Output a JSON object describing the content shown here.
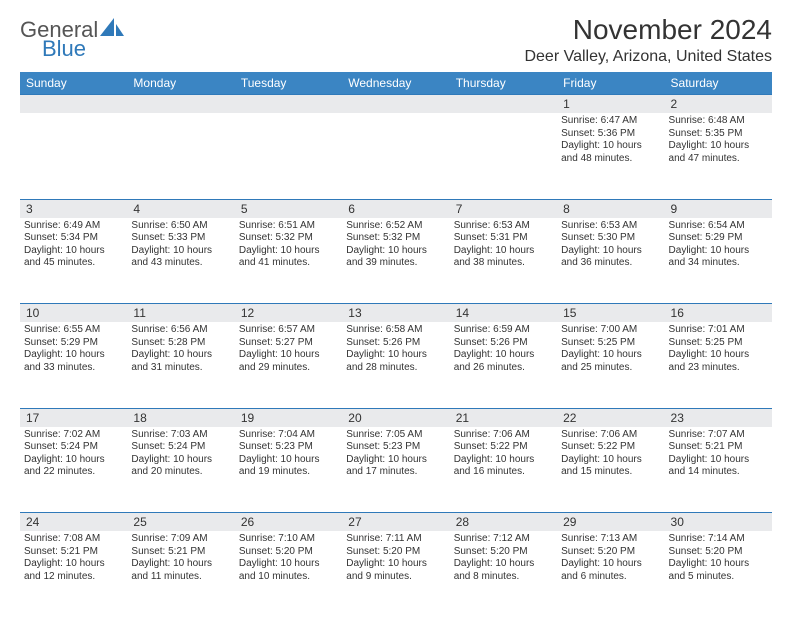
{
  "logo": {
    "part1": "General",
    "part2": "Blue"
  },
  "title": "November 2024",
  "location": "Deer Valley, Arizona, United States",
  "colors": {
    "header_bg": "#3b85c3",
    "header_text": "#ffffff",
    "daynum_bg": "#e9eaec",
    "border": "#2f79b9",
    "text": "#333333",
    "logo_gray": "#555555",
    "logo_blue": "#2f79b9"
  },
  "day_headers": [
    "Sunday",
    "Monday",
    "Tuesday",
    "Wednesday",
    "Thursday",
    "Friday",
    "Saturday"
  ],
  "weeks": [
    {
      "nums": [
        "",
        "",
        "",
        "",
        "",
        "1",
        "2"
      ],
      "cells": [
        null,
        null,
        null,
        null,
        null,
        {
          "sunrise": "Sunrise: 6:47 AM",
          "sunset": "Sunset: 5:36 PM",
          "day1": "Daylight: 10 hours",
          "day2": "and 48 minutes."
        },
        {
          "sunrise": "Sunrise: 6:48 AM",
          "sunset": "Sunset: 5:35 PM",
          "day1": "Daylight: 10 hours",
          "day2": "and 47 minutes."
        }
      ]
    },
    {
      "nums": [
        "3",
        "4",
        "5",
        "6",
        "7",
        "8",
        "9"
      ],
      "cells": [
        {
          "sunrise": "Sunrise: 6:49 AM",
          "sunset": "Sunset: 5:34 PM",
          "day1": "Daylight: 10 hours",
          "day2": "and 45 minutes."
        },
        {
          "sunrise": "Sunrise: 6:50 AM",
          "sunset": "Sunset: 5:33 PM",
          "day1": "Daylight: 10 hours",
          "day2": "and 43 minutes."
        },
        {
          "sunrise": "Sunrise: 6:51 AM",
          "sunset": "Sunset: 5:32 PM",
          "day1": "Daylight: 10 hours",
          "day2": "and 41 minutes."
        },
        {
          "sunrise": "Sunrise: 6:52 AM",
          "sunset": "Sunset: 5:32 PM",
          "day1": "Daylight: 10 hours",
          "day2": "and 39 minutes."
        },
        {
          "sunrise": "Sunrise: 6:53 AM",
          "sunset": "Sunset: 5:31 PM",
          "day1": "Daylight: 10 hours",
          "day2": "and 38 minutes."
        },
        {
          "sunrise": "Sunrise: 6:53 AM",
          "sunset": "Sunset: 5:30 PM",
          "day1": "Daylight: 10 hours",
          "day2": "and 36 minutes."
        },
        {
          "sunrise": "Sunrise: 6:54 AM",
          "sunset": "Sunset: 5:29 PM",
          "day1": "Daylight: 10 hours",
          "day2": "and 34 minutes."
        }
      ]
    },
    {
      "nums": [
        "10",
        "11",
        "12",
        "13",
        "14",
        "15",
        "16"
      ],
      "cells": [
        {
          "sunrise": "Sunrise: 6:55 AM",
          "sunset": "Sunset: 5:29 PM",
          "day1": "Daylight: 10 hours",
          "day2": "and 33 minutes."
        },
        {
          "sunrise": "Sunrise: 6:56 AM",
          "sunset": "Sunset: 5:28 PM",
          "day1": "Daylight: 10 hours",
          "day2": "and 31 minutes."
        },
        {
          "sunrise": "Sunrise: 6:57 AM",
          "sunset": "Sunset: 5:27 PM",
          "day1": "Daylight: 10 hours",
          "day2": "and 29 minutes."
        },
        {
          "sunrise": "Sunrise: 6:58 AM",
          "sunset": "Sunset: 5:26 PM",
          "day1": "Daylight: 10 hours",
          "day2": "and 28 minutes."
        },
        {
          "sunrise": "Sunrise: 6:59 AM",
          "sunset": "Sunset: 5:26 PM",
          "day1": "Daylight: 10 hours",
          "day2": "and 26 minutes."
        },
        {
          "sunrise": "Sunrise: 7:00 AM",
          "sunset": "Sunset: 5:25 PM",
          "day1": "Daylight: 10 hours",
          "day2": "and 25 minutes."
        },
        {
          "sunrise": "Sunrise: 7:01 AM",
          "sunset": "Sunset: 5:25 PM",
          "day1": "Daylight: 10 hours",
          "day2": "and 23 minutes."
        }
      ]
    },
    {
      "nums": [
        "17",
        "18",
        "19",
        "20",
        "21",
        "22",
        "23"
      ],
      "cells": [
        {
          "sunrise": "Sunrise: 7:02 AM",
          "sunset": "Sunset: 5:24 PM",
          "day1": "Daylight: 10 hours",
          "day2": "and 22 minutes."
        },
        {
          "sunrise": "Sunrise: 7:03 AM",
          "sunset": "Sunset: 5:24 PM",
          "day1": "Daylight: 10 hours",
          "day2": "and 20 minutes."
        },
        {
          "sunrise": "Sunrise: 7:04 AM",
          "sunset": "Sunset: 5:23 PM",
          "day1": "Daylight: 10 hours",
          "day2": "and 19 minutes."
        },
        {
          "sunrise": "Sunrise: 7:05 AM",
          "sunset": "Sunset: 5:23 PM",
          "day1": "Daylight: 10 hours",
          "day2": "and 17 minutes."
        },
        {
          "sunrise": "Sunrise: 7:06 AM",
          "sunset": "Sunset: 5:22 PM",
          "day1": "Daylight: 10 hours",
          "day2": "and 16 minutes."
        },
        {
          "sunrise": "Sunrise: 7:06 AM",
          "sunset": "Sunset: 5:22 PM",
          "day1": "Daylight: 10 hours",
          "day2": "and 15 minutes."
        },
        {
          "sunrise": "Sunrise: 7:07 AM",
          "sunset": "Sunset: 5:21 PM",
          "day1": "Daylight: 10 hours",
          "day2": "and 14 minutes."
        }
      ]
    },
    {
      "nums": [
        "24",
        "25",
        "26",
        "27",
        "28",
        "29",
        "30"
      ],
      "cells": [
        {
          "sunrise": "Sunrise: 7:08 AM",
          "sunset": "Sunset: 5:21 PM",
          "day1": "Daylight: 10 hours",
          "day2": "and 12 minutes."
        },
        {
          "sunrise": "Sunrise: 7:09 AM",
          "sunset": "Sunset: 5:21 PM",
          "day1": "Daylight: 10 hours",
          "day2": "and 11 minutes."
        },
        {
          "sunrise": "Sunrise: 7:10 AM",
          "sunset": "Sunset: 5:20 PM",
          "day1": "Daylight: 10 hours",
          "day2": "and 10 minutes."
        },
        {
          "sunrise": "Sunrise: 7:11 AM",
          "sunset": "Sunset: 5:20 PM",
          "day1": "Daylight: 10 hours",
          "day2": "and 9 minutes."
        },
        {
          "sunrise": "Sunrise: 7:12 AM",
          "sunset": "Sunset: 5:20 PM",
          "day1": "Daylight: 10 hours",
          "day2": "and 8 minutes."
        },
        {
          "sunrise": "Sunrise: 7:13 AM",
          "sunset": "Sunset: 5:20 PM",
          "day1": "Daylight: 10 hours",
          "day2": "and 6 minutes."
        },
        {
          "sunrise": "Sunrise: 7:14 AM",
          "sunset": "Sunset: 5:20 PM",
          "day1": "Daylight: 10 hours",
          "day2": "and 5 minutes."
        }
      ]
    }
  ]
}
